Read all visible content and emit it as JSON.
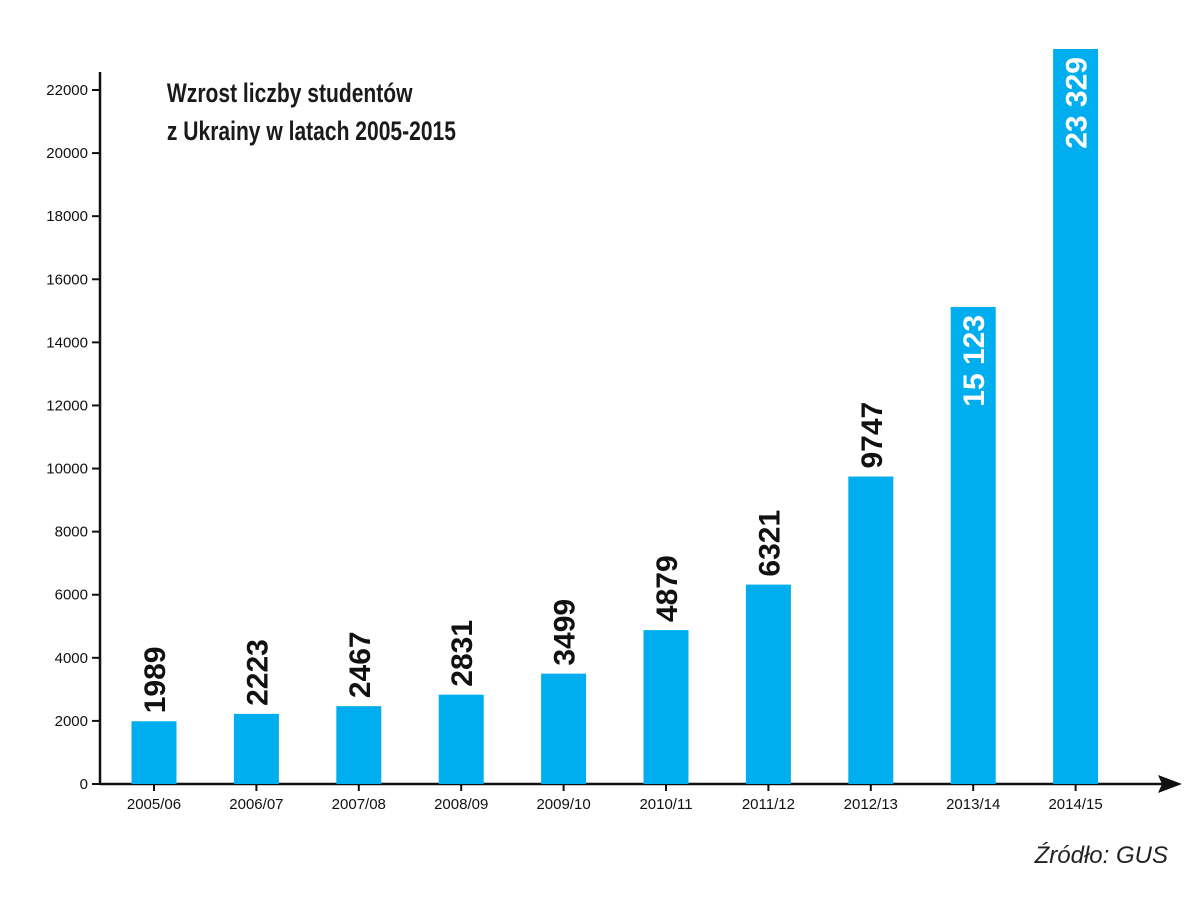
{
  "chart_data": {
    "type": "bar",
    "title_lines": [
      "Wzrost liczby studentów",
      "z Ukrainy w latach 2005-2015"
    ],
    "xlabel": "",
    "ylabel": "",
    "categories": [
      "2005/06",
      "2006/07",
      "2007/08",
      "2008/09",
      "2009/10",
      "2010/11",
      "2011/12",
      "2012/13",
      "2013/14",
      "2014/15"
    ],
    "values": [
      1989,
      2223,
      2467,
      2831,
      3499,
      4879,
      6321,
      9747,
      15123,
      23329
    ],
    "value_labels": [
      "1989",
      "2223",
      "2467",
      "2831",
      "3499",
      "4879",
      "6321",
      "9747",
      "15 123",
      "23 329"
    ],
    "ylim": [
      0,
      23329
    ],
    "yticks": [
      0,
      2000,
      4000,
      6000,
      8000,
      10000,
      12000,
      14000,
      16000,
      18000,
      20000,
      22000
    ],
    "ytick_labels": [
      "0",
      "2000",
      "4000",
      "6000",
      "8000",
      "10000",
      "12000",
      "14000",
      "16000",
      "18000",
      "20000",
      "22000"
    ],
    "grid": false,
    "bar_color": "#00aeef",
    "label_color_outside": "#111111",
    "label_color_inside": "#ffffff",
    "axis_color": "#111111"
  },
  "source": "Źródło: GUS"
}
